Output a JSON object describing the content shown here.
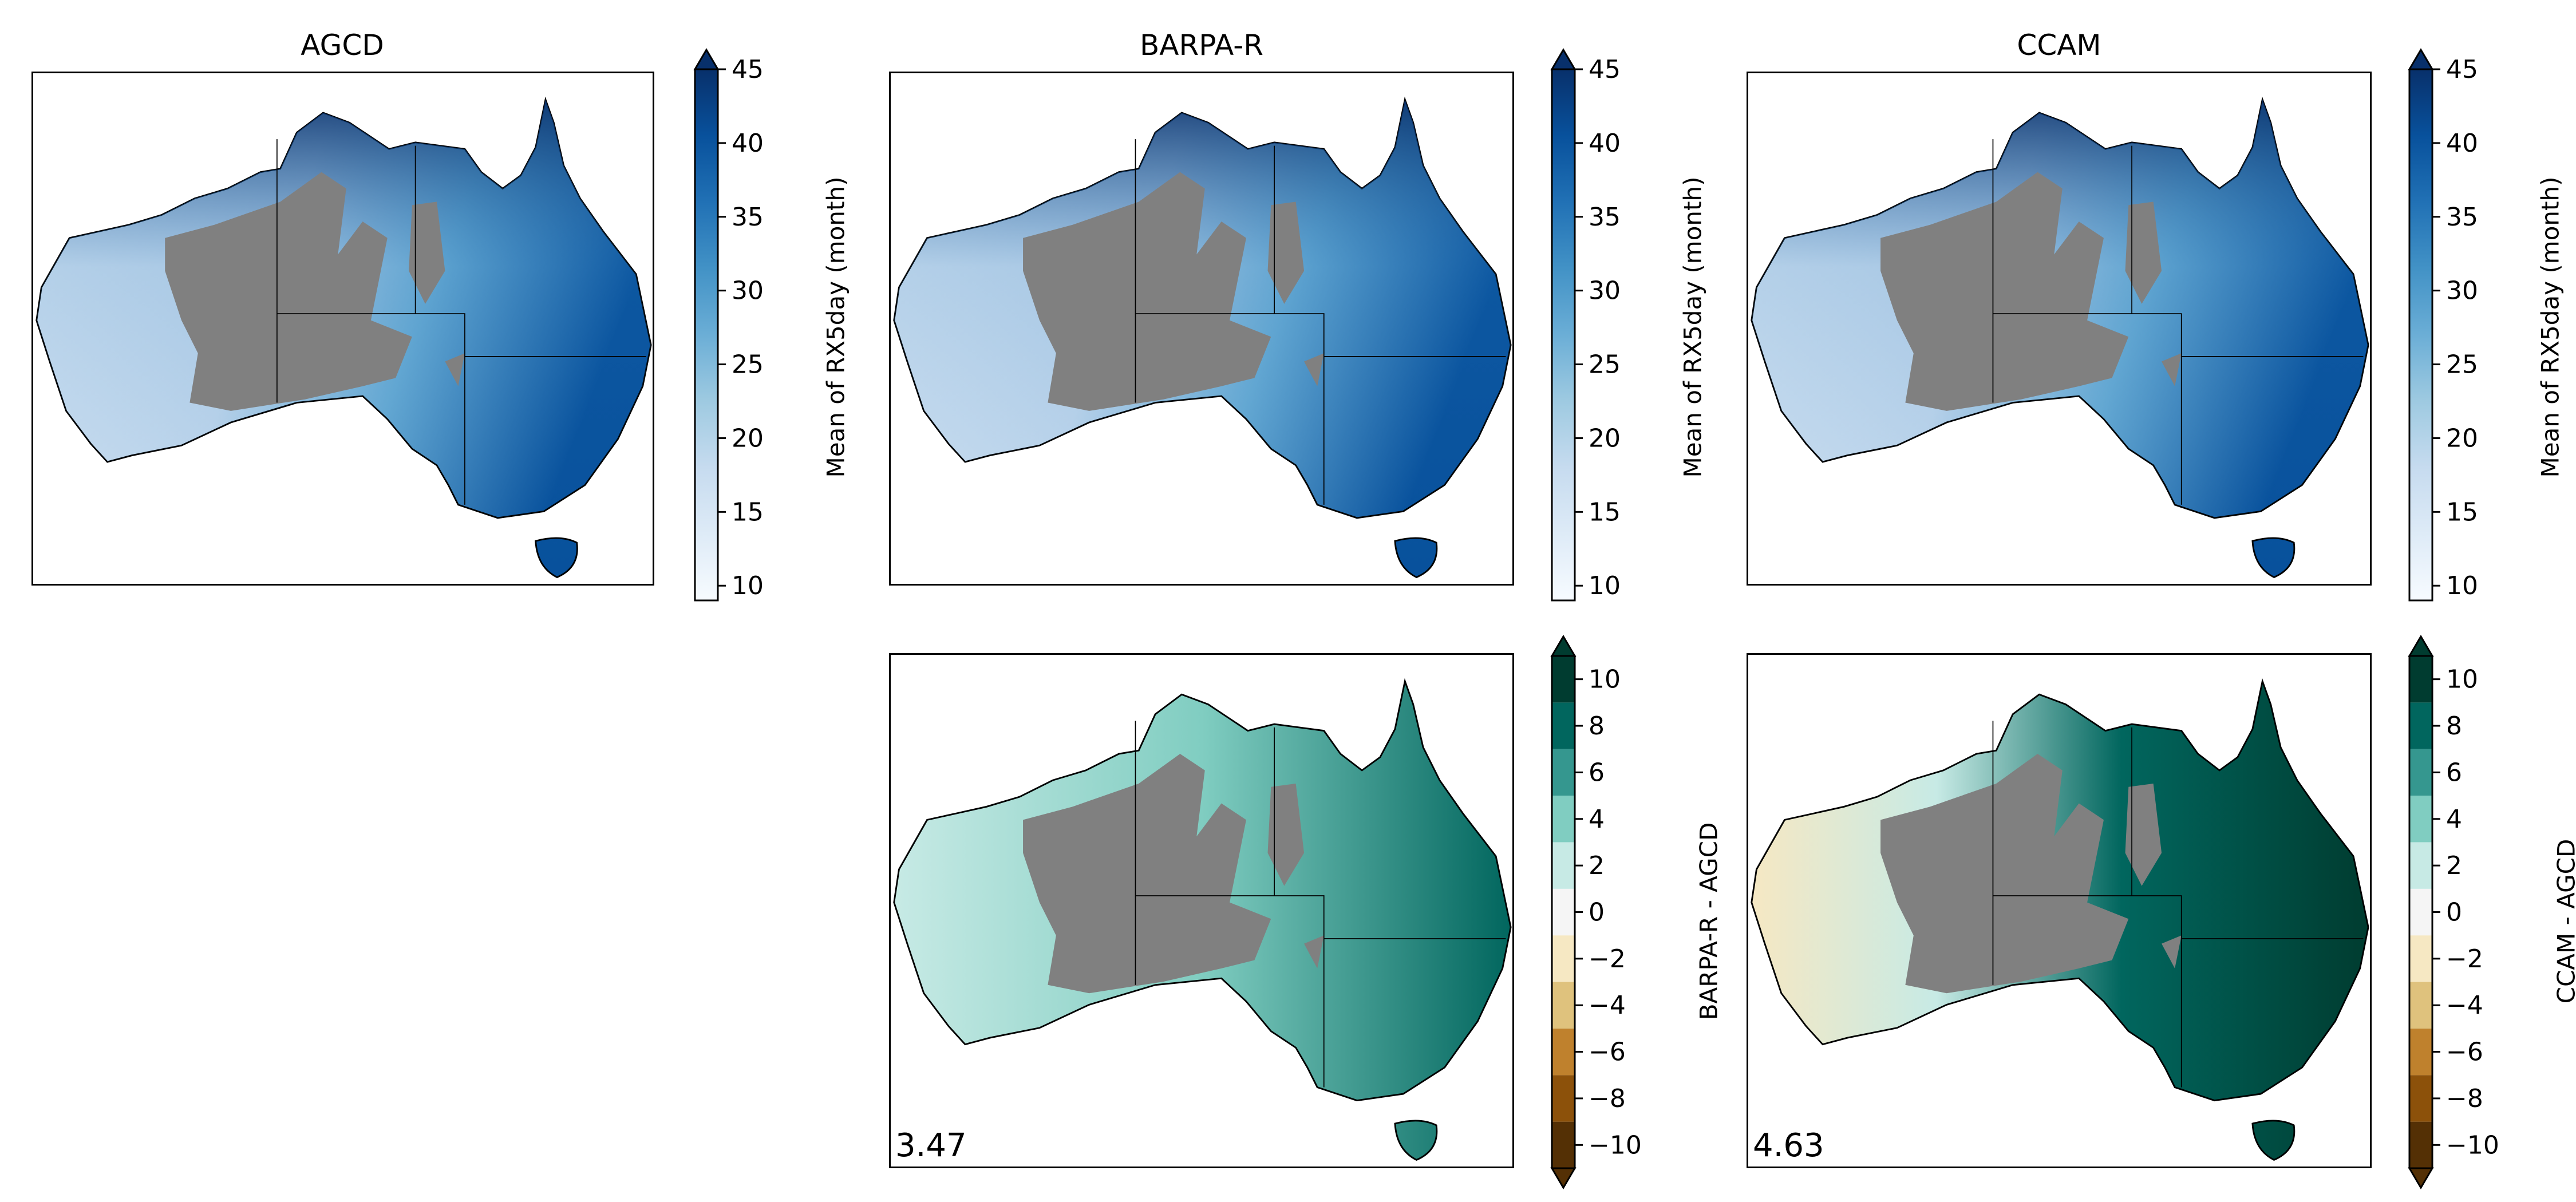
{
  "chart_data": [
    {
      "type": "heatmap",
      "title": "AGCD",
      "colorbar": {
        "label": "Mean of RX5day (month)",
        "ticks": [
          10,
          15,
          20,
          25,
          30,
          35,
          40,
          45
        ],
        "range": [
          9,
          45
        ],
        "extend": "max",
        "colormap": "Blues"
      }
    },
    {
      "type": "heatmap",
      "title": "BARPA-R",
      "colorbar": {
        "label": "Mean of RX5day (month)",
        "ticks": [
          10,
          15,
          20,
          25,
          30,
          35,
          40,
          45
        ],
        "range": [
          9,
          45
        ],
        "extend": "max",
        "colormap": "Blues"
      }
    },
    {
      "type": "heatmap",
      "title": "CCAM",
      "colorbar": {
        "label": "Mean of RX5day (month)",
        "ticks": [
          10,
          15,
          20,
          25,
          30,
          35,
          40,
          45
        ],
        "range": [
          9,
          45
        ],
        "extend": "max",
        "colormap": "Blues"
      }
    },
    {
      "type": "heatmap",
      "title": "",
      "annotation": "3.47",
      "colorbar": {
        "label": "BARPA-R - AGCD",
        "ticks": [
          -10,
          -8,
          -6,
          -4,
          -2,
          0,
          2,
          4,
          6,
          8,
          10
        ],
        "range": [
          -11,
          11
        ],
        "extend": "both",
        "colormap": "BrBG"
      }
    },
    {
      "type": "heatmap",
      "title": "",
      "annotation": "4.63",
      "colorbar": {
        "label": "CCAM - AGCD",
        "ticks": [
          -10,
          -8,
          -6,
          -4,
          -2,
          0,
          2,
          4,
          6,
          8,
          10
        ],
        "range": [
          -11,
          11
        ],
        "extend": "both",
        "colormap": "BrBG"
      }
    }
  ],
  "colors": {
    "blues": [
      "#f7fbff",
      "#deebf7",
      "#c6dbef",
      "#9ecae1",
      "#6baed6",
      "#4292c6",
      "#2171b5",
      "#08519c",
      "#08306b"
    ],
    "brbg": [
      "#543005",
      "#8c510a",
      "#bf812d",
      "#dfc27d",
      "#f6e8c3",
      "#f5f5f5",
      "#c7eae5",
      "#80cdc1",
      "#35978f",
      "#01665e",
      "#003c30"
    ],
    "mask": "#808080"
  }
}
